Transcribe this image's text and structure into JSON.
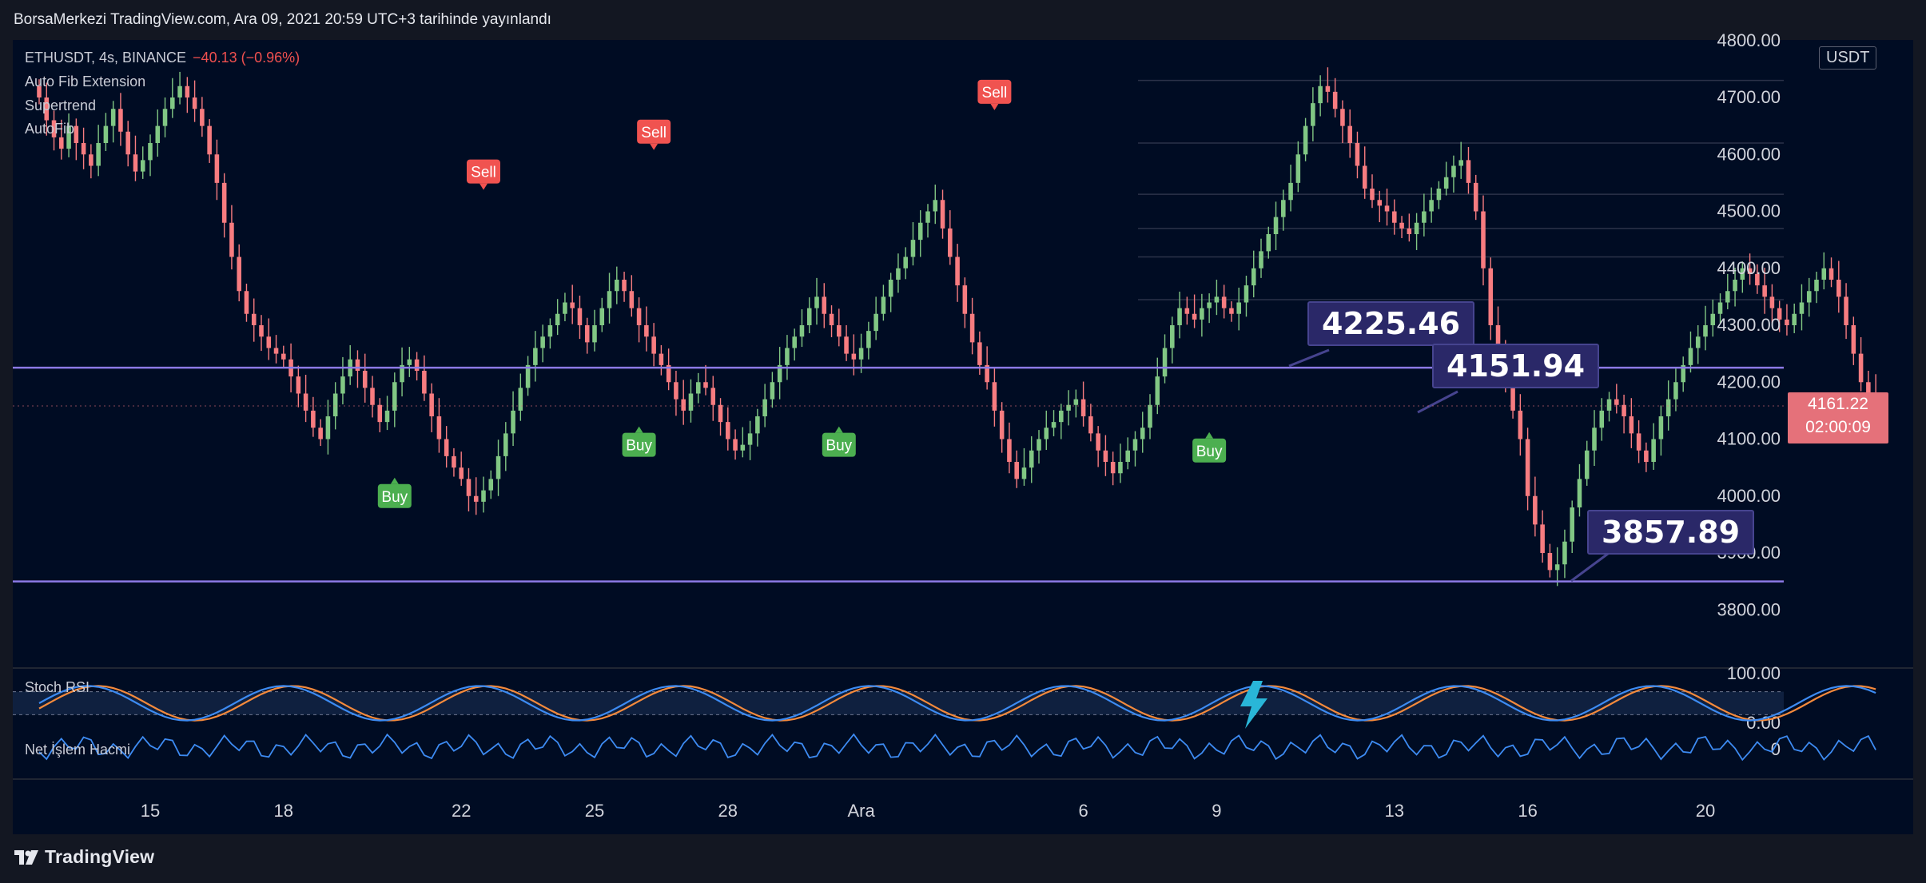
{
  "header": {
    "text": "BorsaMerkezi TradingView.com, Ara 09, 2021 20:59 UTC+3 tarihinde yayınlandı"
  },
  "legend": {
    "symbol": "ETHUSDT, 4s, BINANCE",
    "change": "−40.13 (−0.96%)",
    "indicators": [
      "Auto Fib Extension",
      "Supertrend",
      "AutoFib"
    ]
  },
  "currency": "USDT",
  "last_price": {
    "value": "4161.22",
    "countdown": "02:00:09"
  },
  "callouts": [
    {
      "label": "4225.46",
      "target_date": "2021-12-11"
    },
    {
      "label": "4151.94",
      "target_date": "2021-12-15"
    },
    {
      "label": "3857.89",
      "target_date": "2021-12-18"
    }
  ],
  "signals": [
    {
      "label": "Sell",
      "date": "2021-11-22T12:00",
      "y": 4570
    },
    {
      "label": "Sell",
      "date": "2021-11-26T08:00",
      "y": 4640
    },
    {
      "label": "Sell",
      "date": "2021-12-04T00:00",
      "y": 4710
    },
    {
      "label": "Buy",
      "date": "2021-11-20T12:00",
      "y": 4000
    },
    {
      "label": "Buy",
      "date": "2021-11-26T00:00",
      "y": 4090
    },
    {
      "label": "Buy",
      "date": "2021-11-30T12:00",
      "y": 4090
    },
    {
      "label": "Buy",
      "date": "2021-12-08T20:00",
      "y": 4080
    }
  ],
  "panes": {
    "stoch_rsi": "Stoch RSI",
    "net_volume": "Net İşlem Hacmi"
  },
  "branding": {
    "logo": "TradingView"
  },
  "chart_data": {
    "type": "candlestick",
    "y_axis": {
      "ylim": [
        3700,
        4800
      ],
      "ticks": [
        "4700.00",
        "4600.00",
        "4500.00",
        "4400.00",
        "4300.00",
        "4200.00",
        "4000.00",
        "3900.00",
        "3800.00"
      ],
      "partial_top_tick": "4800.00",
      "partial_tick": "4100.00"
    },
    "x_axis": {
      "range": [
        "2021-11-12",
        "2021-12-22"
      ],
      "ticks": [
        {
          "label": "15",
          "date": "2021-11-15"
        },
        {
          "label": "18",
          "date": "2021-11-18"
        },
        {
          "label": "22",
          "date": "2021-11-22"
        },
        {
          "label": "25",
          "date": "2021-11-25"
        },
        {
          "label": "28",
          "date": "2021-11-28"
        },
        {
          "label": "Ara",
          "date": "2021-12-01"
        },
        {
          "label": "6",
          "date": "2021-12-06"
        },
        {
          "label": "9",
          "date": "2021-12-09"
        },
        {
          "label": "13",
          "date": "2021-12-13"
        },
        {
          "label": "16",
          "date": "2021-12-16"
        },
        {
          "label": "20",
          "date": "2021-12-20"
        }
      ]
    },
    "horizontal_lines": [
      4225.46,
      3850
    ],
    "close_series": {
      "start": "2021-11-12T12:00",
      "interval_hours": 4,
      "values": [
        4700,
        4660,
        4630,
        4610,
        4650,
        4620,
        4600,
        4580,
        4620,
        4650,
        4680,
        4640,
        4600,
        4570,
        4590,
        4620,
        4650,
        4680,
        4700,
        4720,
        4700,
        4680,
        4650,
        4600,
        4550,
        4480,
        4420,
        4360,
        4320,
        4300,
        4280,
        4260,
        4250,
        4240,
        4210,
        4180,
        4150,
        4120,
        4100,
        4140,
        4180,
        4210,
        4240,
        4220,
        4190,
        4160,
        4130,
        4150,
        4200,
        4230,
        4240,
        4220,
        4180,
        4140,
        4100,
        4070,
        4050,
        4030,
        4000,
        3990,
        4010,
        4030,
        4070,
        4110,
        4150,
        4190,
        4230,
        4260,
        4280,
        4300,
        4320,
        4340,
        4330,
        4300,
        4270,
        4300,
        4330,
        4360,
        4380,
        4360,
        4330,
        4300,
        4280,
        4250,
        4230,
        4200,
        4170,
        4150,
        4180,
        4200,
        4190,
        4160,
        4130,
        4100,
        4080,
        4090,
        4110,
        4140,
        4170,
        4200,
        4230,
        4260,
        4280,
        4300,
        4330,
        4350,
        4320,
        4300,
        4280,
        4250,
        4240,
        4260,
        4290,
        4320,
        4350,
        4380,
        4400,
        4420,
        4450,
        4480,
        4500,
        4520,
        4470,
        4420,
        4370,
        4320,
        4270,
        4230,
        4200,
        4150,
        4100,
        4060,
        4030,
        4050,
        4080,
        4100,
        4120,
        4130,
        4150,
        4160,
        4170,
        4140,
        4110,
        4080,
        4060,
        4040,
        4060,
        4080,
        4100,
        4120,
        4160,
        4210,
        4260,
        4300,
        4330,
        4320,
        4310,
        4330,
        4340,
        4350,
        4330,
        4320,
        4340,
        4370,
        4400,
        4430,
        4460,
        4490,
        4520,
        4550,
        4600,
        4650,
        4690,
        4720,
        4710,
        4680,
        4650,
        4620,
        4580,
        4540,
        4520,
        4510,
        4500,
        4480,
        4470,
        4460,
        4480,
        4500,
        4520,
        4540,
        4560,
        4580,
        4590,
        4550,
        4500,
        4400,
        4300,
        4250,
        4200,
        4150,
        4100,
        4000,
        3950,
        3900,
        3870,
        3880,
        3920,
        3980,
        4030,
        4080,
        4120,
        4150,
        4170,
        4160,
        4140,
        4110,
        4080,
        4060,
        4100,
        4140,
        4170,
        4200,
        4230,
        4260,
        4280,
        4300,
        4320,
        4340,
        4360,
        4380,
        4400,
        4390,
        4370,
        4350,
        4330,
        4310,
        4300,
        4320,
        4340,
        4360,
        4380,
        4400,
        4380,
        4350,
        4300,
        4250,
        4200,
        4180,
        4161
      ]
    },
    "panes": [
      {
        "name": "Stoch RSI",
        "ylim": [
          0,
          100
        ],
        "bands": [
          20,
          80
        ],
        "tick_labels": [
          "100.00",
          "0.00"
        ]
      },
      {
        "name": "Net İşlem Hacmi",
        "tick_labels": [
          "0"
        ]
      }
    ]
  }
}
